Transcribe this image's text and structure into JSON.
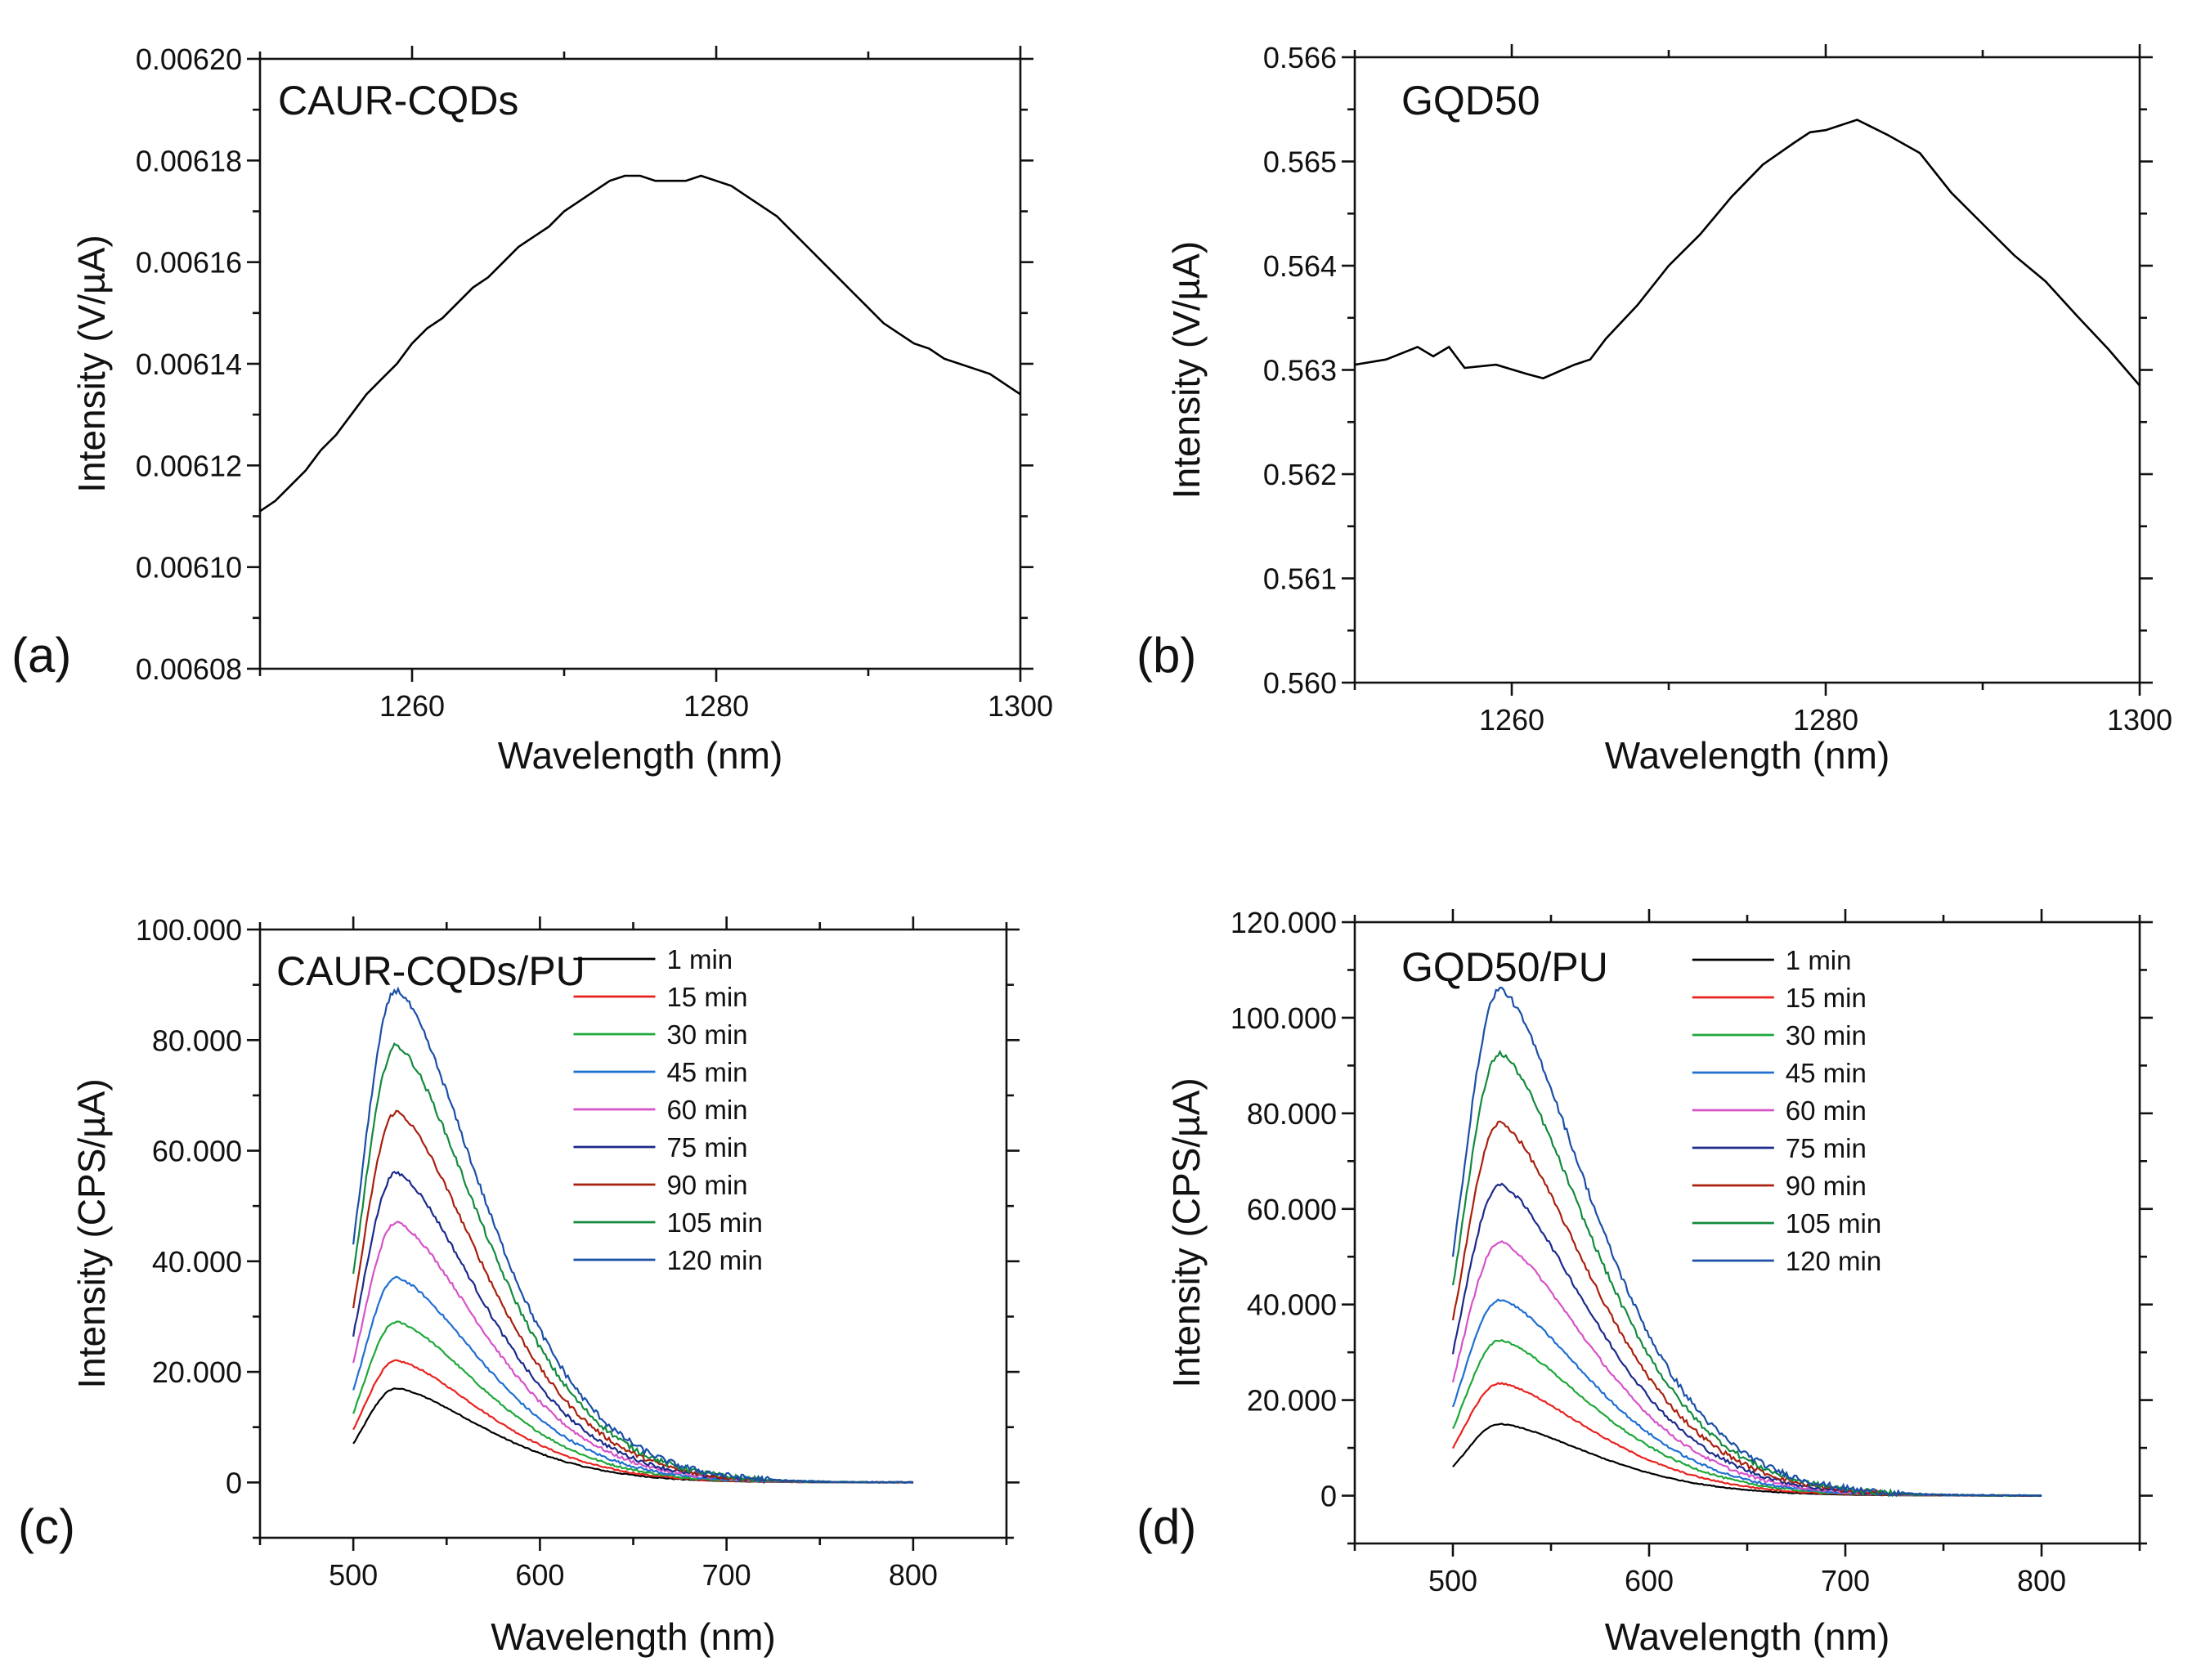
{
  "figure": {
    "panels": [
      {
        "id": "a",
        "letter": "(a)",
        "title": "CAUR-CQDs"
      },
      {
        "id": "b",
        "letter": "(b)",
        "title": "GQD50"
      },
      {
        "id": "c",
        "letter": "(c)",
        "title": "CAUR-CQDs/PU"
      },
      {
        "id": "d",
        "letter": "(d)",
        "title": "GQD50/PU"
      }
    ]
  },
  "chart_data": [
    {
      "id": "a",
      "type": "line",
      "title": "CAUR-CQDs",
      "xlabel": "Wavelength (nm)",
      "ylabel": "Intensity (V/µA)",
      "xlim": [
        1250,
        1300
      ],
      "ylim": [
        0.00608,
        0.0062
      ],
      "xticks": [
        1260,
        1280,
        1300
      ],
      "yticks": [
        0.00608,
        0.0061,
        0.00612,
        0.00614,
        0.00616,
        0.00618,
        0.0062
      ],
      "ytick_labels": [
        "0.00608",
        "0.00610",
        "0.00612",
        "0.00614",
        "0.00616",
        "0.00618",
        "0.00620"
      ],
      "grid": false,
      "series": [
        {
          "name": "CAUR-CQDs",
          "color": "#000000",
          "x": [
            1250,
            1251,
            1252,
            1253,
            1254,
            1255,
            1256,
            1257,
            1258,
            1259,
            1260,
            1261,
            1262,
            1263,
            1264,
            1265,
            1266,
            1267,
            1268,
            1269,
            1270,
            1271,
            1272,
            1273,
            1274,
            1275,
            1276,
            1277,
            1278,
            1279,
            1280,
            1281,
            1282,
            1283,
            1284,
            1285,
            1286,
            1287,
            1288,
            1289,
            1290,
            1291,
            1292,
            1293,
            1294,
            1295,
            1296,
            1297,
            1298,
            1299,
            1300
          ],
          "y": [
            0.006111,
            0.006113,
            0.006116,
            0.006119,
            0.006123,
            0.006126,
            0.00613,
            0.006134,
            0.006137,
            0.00614,
            0.006144,
            0.006147,
            0.006149,
            0.006152,
            0.006155,
            0.006157,
            0.00616,
            0.006163,
            0.006165,
            0.006167,
            0.00617,
            0.006172,
            0.006174,
            0.006176,
            0.006177,
            0.006177,
            0.006176,
            0.006176,
            0.006176,
            0.006177,
            0.006176,
            0.006175,
            0.006173,
            0.006171,
            0.006169,
            0.006166,
            0.006163,
            0.00616,
            0.006157,
            0.006154,
            0.006151,
            0.006148,
            0.006146,
            0.006144,
            0.006143,
            0.006141,
            0.00614,
            0.006139,
            0.006138,
            0.006136,
            0.006134
          ]
        }
      ]
    },
    {
      "id": "b",
      "type": "line",
      "title": "GQD50",
      "xlabel": "Wavelength (nm)",
      "ylabel": "Intensity (V/µA)",
      "xlim": [
        1250,
        1300
      ],
      "ylim": [
        0.56,
        0.566
      ],
      "xticks": [
        1260,
        1280,
        1300
      ],
      "yticks": [
        0.56,
        0.561,
        0.562,
        0.563,
        0.564,
        0.565,
        0.566
      ],
      "ytick_labels": [
        "0.560",
        "0.561",
        "0.562",
        "0.563",
        "0.564",
        "0.565",
        "0.566"
      ],
      "grid": false,
      "series": [
        {
          "name": "GQD50",
          "color": "#000000",
          "x": [
            1250,
            1252,
            1254,
            1255,
            1256,
            1257,
            1259,
            1261,
            1262,
            1264,
            1265,
            1266,
            1268,
            1270,
            1272,
            1274,
            1276,
            1278,
            1279,
            1280,
            1282,
            1284,
            1286,
            1288,
            1290,
            1292,
            1294,
            1296,
            1298,
            1300
          ],
          "y": [
            0.56305,
            0.5631,
            0.56322,
            0.56313,
            0.56322,
            0.56302,
            0.56305,
            0.56296,
            0.56292,
            0.56305,
            0.5631,
            0.5633,
            0.56362,
            0.564,
            0.5643,
            0.56466,
            0.56497,
            0.56518,
            0.56528,
            0.5653,
            0.5654,
            0.56525,
            0.56508,
            0.5647,
            0.5644,
            0.5641,
            0.56385,
            0.56352,
            0.5632,
            0.56285
          ]
        }
      ]
    },
    {
      "id": "c",
      "type": "line",
      "title": "CAUR-CQDs/PU",
      "xlabel": "Wavelength (nm)",
      "ylabel": "Intensity (CPS/µA)",
      "xlim": [
        450,
        850
      ],
      "ylim": [
        -10000,
        100000
      ],
      "xticks": [
        500,
        600,
        700,
        800
      ],
      "yticks": [
        0,
        20000,
        40000,
        60000,
        80000,
        100000
      ],
      "ytick_labels": [
        "0",
        "20.000",
        "40.000",
        "60.000",
        "80.000",
        "100.000"
      ],
      "grid": false,
      "legend": "top-right",
      "peak_wavelength": 523,
      "x_range": [
        500,
        800
      ],
      "series": [
        {
          "name": "1 min",
          "color": "#000000",
          "peak": 17000,
          "start": 7000
        },
        {
          "name": "15 min",
          "color": "#e8231f",
          "peak": 22000,
          "start": 9500
        },
        {
          "name": "30 min",
          "color": "#1ea83a",
          "peak": 29000,
          "start": 12500
        },
        {
          "name": "45 min",
          "color": "#1f6fd1",
          "peak": 37000,
          "start": 16500
        },
        {
          "name": "60 min",
          "color": "#d653c9",
          "peak": 47000,
          "start": 21500
        },
        {
          "name": "75 min",
          "color": "#1c2a8a",
          "peak": 56000,
          "start": 26500
        },
        {
          "name": "90 min",
          "color": "#a8200e",
          "peak": 67000,
          "start": 31500
        },
        {
          "name": "105 min",
          "color": "#138a3e",
          "peak": 79000,
          "start": 37500
        },
        {
          "name": "120 min",
          "color": "#1a4fa6",
          "peak": 89000,
          "start": 43000
        }
      ]
    },
    {
      "id": "d",
      "type": "line",
      "title": "GQD50/PU",
      "xlabel": "Wavelength (nm)",
      "ylabel": "Intensity (CPS/µA)",
      "xlim": [
        450,
        850
      ],
      "ylim": [
        -10000,
        120000
      ],
      "xticks": [
        500,
        600,
        700,
        800
      ],
      "yticks": [
        0,
        20000,
        40000,
        60000,
        80000,
        100000,
        120000
      ],
      "ytick_labels": [
        "0",
        "20.000",
        "40.000",
        "60.000",
        "80.000",
        "100.000",
        "120.000"
      ],
      "grid": false,
      "legend": "top-right",
      "peak_wavelength": 524,
      "x_range": [
        500,
        800
      ],
      "series": [
        {
          "name": "1 min",
          "color": "#000000",
          "peak": 15000,
          "start": 6000
        },
        {
          "name": "15 min",
          "color": "#e8231f",
          "peak": 23500,
          "start": 10000
        },
        {
          "name": "30 min",
          "color": "#1ea83a",
          "peak": 32500,
          "start": 14000
        },
        {
          "name": "45 min",
          "color": "#1f6fd1",
          "peak": 41000,
          "start": 18500
        },
        {
          "name": "60 min",
          "color": "#d653c9",
          "peak": 53000,
          "start": 24000
        },
        {
          "name": "75 min",
          "color": "#1c2a8a",
          "peak": 65000,
          "start": 30000
        },
        {
          "name": "90 min",
          "color": "#a8200e",
          "peak": 78000,
          "start": 36500
        },
        {
          "name": "105 min",
          "color": "#138a3e",
          "peak": 92500,
          "start": 43500
        },
        {
          "name": "120 min",
          "color": "#1a4fa6",
          "peak": 106000,
          "start": 50000
        }
      ]
    }
  ]
}
